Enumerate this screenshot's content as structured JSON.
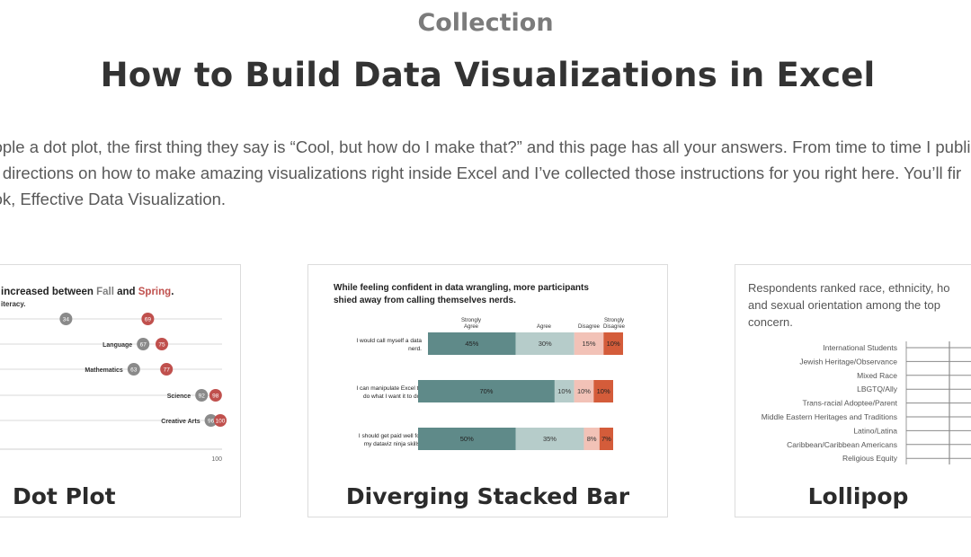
{
  "page": {
    "eyebrow": "Collection",
    "title": "How to Build Data Visualizations in Excel",
    "intro_lines": [
      "people a dot plot, the first thing they say is “Cool, but how do I make that?” and this page has all your answers. From time to time I publi",
      "tep directions on how to make amazing visualizations right inside Excel and I’ve collected those instructions for you right here. You’ll fir",
      "book, Effective Data Visualization."
    ]
  },
  "cards": [
    {
      "label": "Dot Plot",
      "thumb": {
        "title_a": "increased between ",
        "title_fall": "Fall",
        "title_and": " and ",
        "title_spring": "Spring",
        "title_end": ".",
        "subtitle": "iteracy.",
        "rows": [
          {
            "label": "",
            "fall": 34,
            "spring": 69
          },
          {
            "label": "Language",
            "fall": 67,
            "spring": 75
          },
          {
            "label": "Mathematics",
            "fall": 63,
            "spring": 77
          },
          {
            "label": "Science",
            "fall": 92,
            "spring": 98
          },
          {
            "label": "Creative Arts",
            "fall": 96,
            "spring": 100
          }
        ],
        "axis_max": "100",
        "colors": {
          "fall": "#8a8a8a",
          "spring": "#c0504d"
        }
      }
    },
    {
      "label": "Diverging Stacked Bar",
      "thumb": {
        "title_line1": "While feeling confident in data wrangling, more participants",
        "title_line2": "shied away from calling themselves nerds.",
        "headers": {
          "strongly_agree_1": "Strongly",
          "strongly_agree_2": "Agree",
          "agree": "Agree",
          "disagree": "Disagree",
          "strongly_disagree_1": "Strongly",
          "strongly_disagree_2": "Disagree"
        },
        "rows": [
          {
            "label1": "I would call myself a data",
            "label2": "nerd.",
            "values": [
              "45%",
              "30%",
              "15%",
              "10%"
            ]
          },
          {
            "label1": "I can manipulate Excel to",
            "label2": "do what I want it to do.",
            "values": [
              "70%",
              "10%",
              "10%",
              "10%"
            ]
          },
          {
            "label1": "I should get paid well for",
            "label2": "my dataviz ninja skills.",
            "values": [
              "50%",
              "35%",
              "8%",
              "7%"
            ]
          }
        ],
        "colors": {
          "strongly_agree": "#5f8a89",
          "agree": "#b6ccca",
          "disagree": "#f2c2b7",
          "strongly_disagree": "#d45c3a"
        }
      }
    },
    {
      "label": "Lollipop",
      "thumb": {
        "title_line1": "Respondents ranked race, ethnicity, ho",
        "title_line2": "and sexual orientation among the top",
        "title_line3": "concern.",
        "categories": [
          "International Students",
          "Jewish Heritage/Observance",
          "Mixed Race",
          "LBGTQ/Ally",
          "Trans-racial Adoptee/Parent",
          "Middle Eastern Heritages and Traditions",
          "Latino/Latina",
          "Caribbean/Caribbean Americans",
          "Religious Equity"
        ]
      }
    }
  ]
}
